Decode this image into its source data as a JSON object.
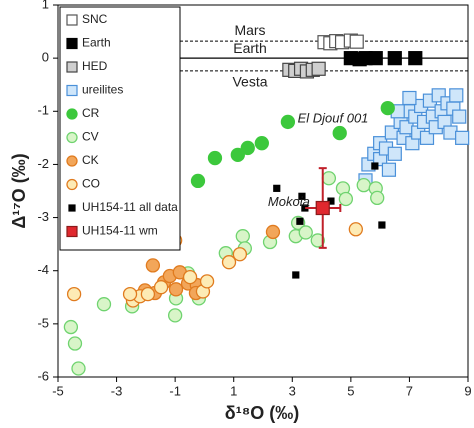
{
  "chart_data": {
    "type": "scatter",
    "x_label": "δ¹⁸O (‰)",
    "y_label": "Δ¹⁷O (‰)",
    "xlim": [
      -5,
      9
    ],
    "xticks": [
      -5,
      -3,
      -1,
      1,
      3,
      5,
      7,
      9
    ],
    "ylim": [
      -6,
      1
    ],
    "yticks": [
      -6,
      -5,
      -4,
      -3,
      -2,
      -1,
      0,
      1
    ],
    "legend": "upper left",
    "reference_lines": [
      {
        "label": "Mars",
        "y": 0.32,
        "style": "dashed"
      },
      {
        "label": "Earth",
        "y": 0,
        "style": "solid"
      },
      {
        "label": "Vesta",
        "y": -0.24,
        "style": "dashed"
      }
    ],
    "annotations": [
      {
        "text": "El Djouf 001",
        "x": 5.6,
        "y": -1.15
      },
      {
        "text": "Mokoia",
        "x": 3.6,
        "y": -2.72
      }
    ],
    "series": [
      {
        "name": "SNC",
        "marker": "square",
        "color": "#ffffff",
        "edgecolor": "#555555",
        "x": [
          4.1,
          4.3,
          4.5,
          4.7,
          5.0,
          5.2
        ],
        "y": [
          0.3,
          0.28,
          0.32,
          0.3,
          0.33,
          0.31
        ]
      },
      {
        "name": "Earth",
        "marker": "square",
        "color": "#000000",
        "edgecolor": "#000000",
        "x": [
          5.0,
          5.3,
          5.5,
          5.85,
          6.5,
          7.2
        ],
        "y": [
          0,
          -0.02,
          0,
          0,
          0,
          0
        ]
      },
      {
        "name": "HED",
        "marker": "square",
        "color": "#cfcfcf",
        "edgecolor": "#444444",
        "x": [
          2.9,
          3.1,
          3.3,
          3.5,
          3.7,
          3.9
        ],
        "y": [
          -0.22,
          -0.24,
          -0.2,
          -0.25,
          -0.22,
          -0.2
        ]
      },
      {
        "name": "ureilites",
        "marker": "square",
        "color": "#cfe6fa",
        "edgecolor": "#4a90d9",
        "x": [
          5.6,
          5.8,
          6.0,
          6.0,
          6.2,
          6.4,
          6.5,
          6.7,
          6.8,
          6.9,
          7.0,
          7.1,
          7.2,
          7.3,
          7.4,
          7.5,
          7.6,
          7.7,
          7.8,
          7.9,
          8.0,
          8.1,
          8.2,
          8.3,
          8.4,
          8.5,
          8.6,
          8.7,
          6.3,
          5.5,
          6.6,
          7.0,
          8.8
        ],
        "y": [
          -2.0,
          -1.8,
          -1.9,
          -1.6,
          -1.7,
          -1.4,
          -1.8,
          -1.2,
          -1.5,
          -1.3,
          -1.0,
          -1.6,
          -1.1,
          -1.4,
          -0.9,
          -1.2,
          -1.5,
          -0.8,
          -1.1,
          -1.3,
          -0.7,
          -1.0,
          -1.2,
          -0.85,
          -1.4,
          -0.95,
          -0.7,
          -1.1,
          -2.1,
          -2.3,
          -1.0,
          -0.75,
          -1.5
        ]
      },
      {
        "name": "CR",
        "marker": "circle",
        "color": "#3cc83c",
        "edgecolor": "#3cc83c",
        "x": [
          -1.2,
          -0.22,
          0.36,
          1.14,
          1.48,
          1.96,
          2.85,
          4.62,
          6.26
        ],
        "y": [
          -2.41,
          -2.31,
          -1.88,
          -1.82,
          -1.69,
          -1.6,
          -1.2,
          -1.41,
          -0.94
        ]
      },
      {
        "name": "CV",
        "marker": "circle",
        "color": "#d8f5c8",
        "edgecolor": "#6fd36f",
        "x": [
          -4.56,
          -4.42,
          -4.3,
          -3.43,
          -2.47,
          -1.0,
          -0.97,
          -0.19,
          1.31,
          1.38,
          2.24,
          3.12,
          3.2,
          3.87,
          4.73,
          4.83,
          5.44,
          5.85,
          5.9,
          4.25,
          3.46,
          -0.56,
          0.73
        ],
        "y": [
          -5.06,
          -5.37,
          -5.84,
          -4.63,
          -4.67,
          -4.84,
          -4.52,
          -4.52,
          -3.35,
          -3.58,
          -3.46,
          -3.35,
          -3.1,
          -3.43,
          -2.45,
          -2.65,
          -2.39,
          -2.45,
          -2.63,
          -2.26,
          -3.28,
          -4.05,
          -3.67
        ]
      },
      {
        "name": "CK",
        "marker": "circle",
        "color": "#f2a65a",
        "edgecolor": "#e07b1f",
        "x": [
          -1.76,
          -1.69,
          -1.38,
          -1.18,
          -0.84,
          -0.56,
          -0.26,
          -0.97,
          -2.03,
          -0.29,
          2.34
        ],
        "y": [
          -3.9,
          -4.42,
          -4.22,
          -4.1,
          -4.03,
          -4.24,
          -4.27,
          -4.35,
          -4.37,
          -4.42,
          -3.27
        ]
      },
      {
        "name": "CO",
        "marker": "circle",
        "color": "#fdebb5",
        "edgecolor": "#e07b1f",
        "x": [
          -4.45,
          -2.44,
          -2.2,
          -1.93,
          -1.48,
          -1.0,
          -0.05,
          0.09,
          0.84,
          1.21,
          5.17,
          -2.54,
          -0.49
        ],
        "y": [
          -4.44,
          -4.56,
          -4.48,
          -4.44,
          -4.31,
          -3.43,
          -4.39,
          -4.2,
          -3.84,
          -3.69,
          -3.22,
          -4.44,
          -4.12
        ]
      },
      {
        "name": "UH154-11 all data",
        "marker": "small-square",
        "color": "#000000",
        "edgecolor": "#000000",
        "x": [
          2.47,
          3.33,
          3.43,
          3.26,
          3.12,
          4.32,
          5.82,
          6.06
        ],
        "y": [
          -2.45,
          -2.6,
          -2.82,
          -3.07,
          -4.08,
          -2.69,
          -2.03,
          -3.14
        ]
      },
      {
        "name": "UH154-11 wm",
        "marker": "square",
        "color": "#e0282e",
        "edgecolor": "#8b1a1a",
        "x": [
          4.04
        ],
        "y": [
          -2.82
        ],
        "xerr": [
          0.6
        ],
        "yerr": [
          0.75
        ]
      }
    ]
  }
}
